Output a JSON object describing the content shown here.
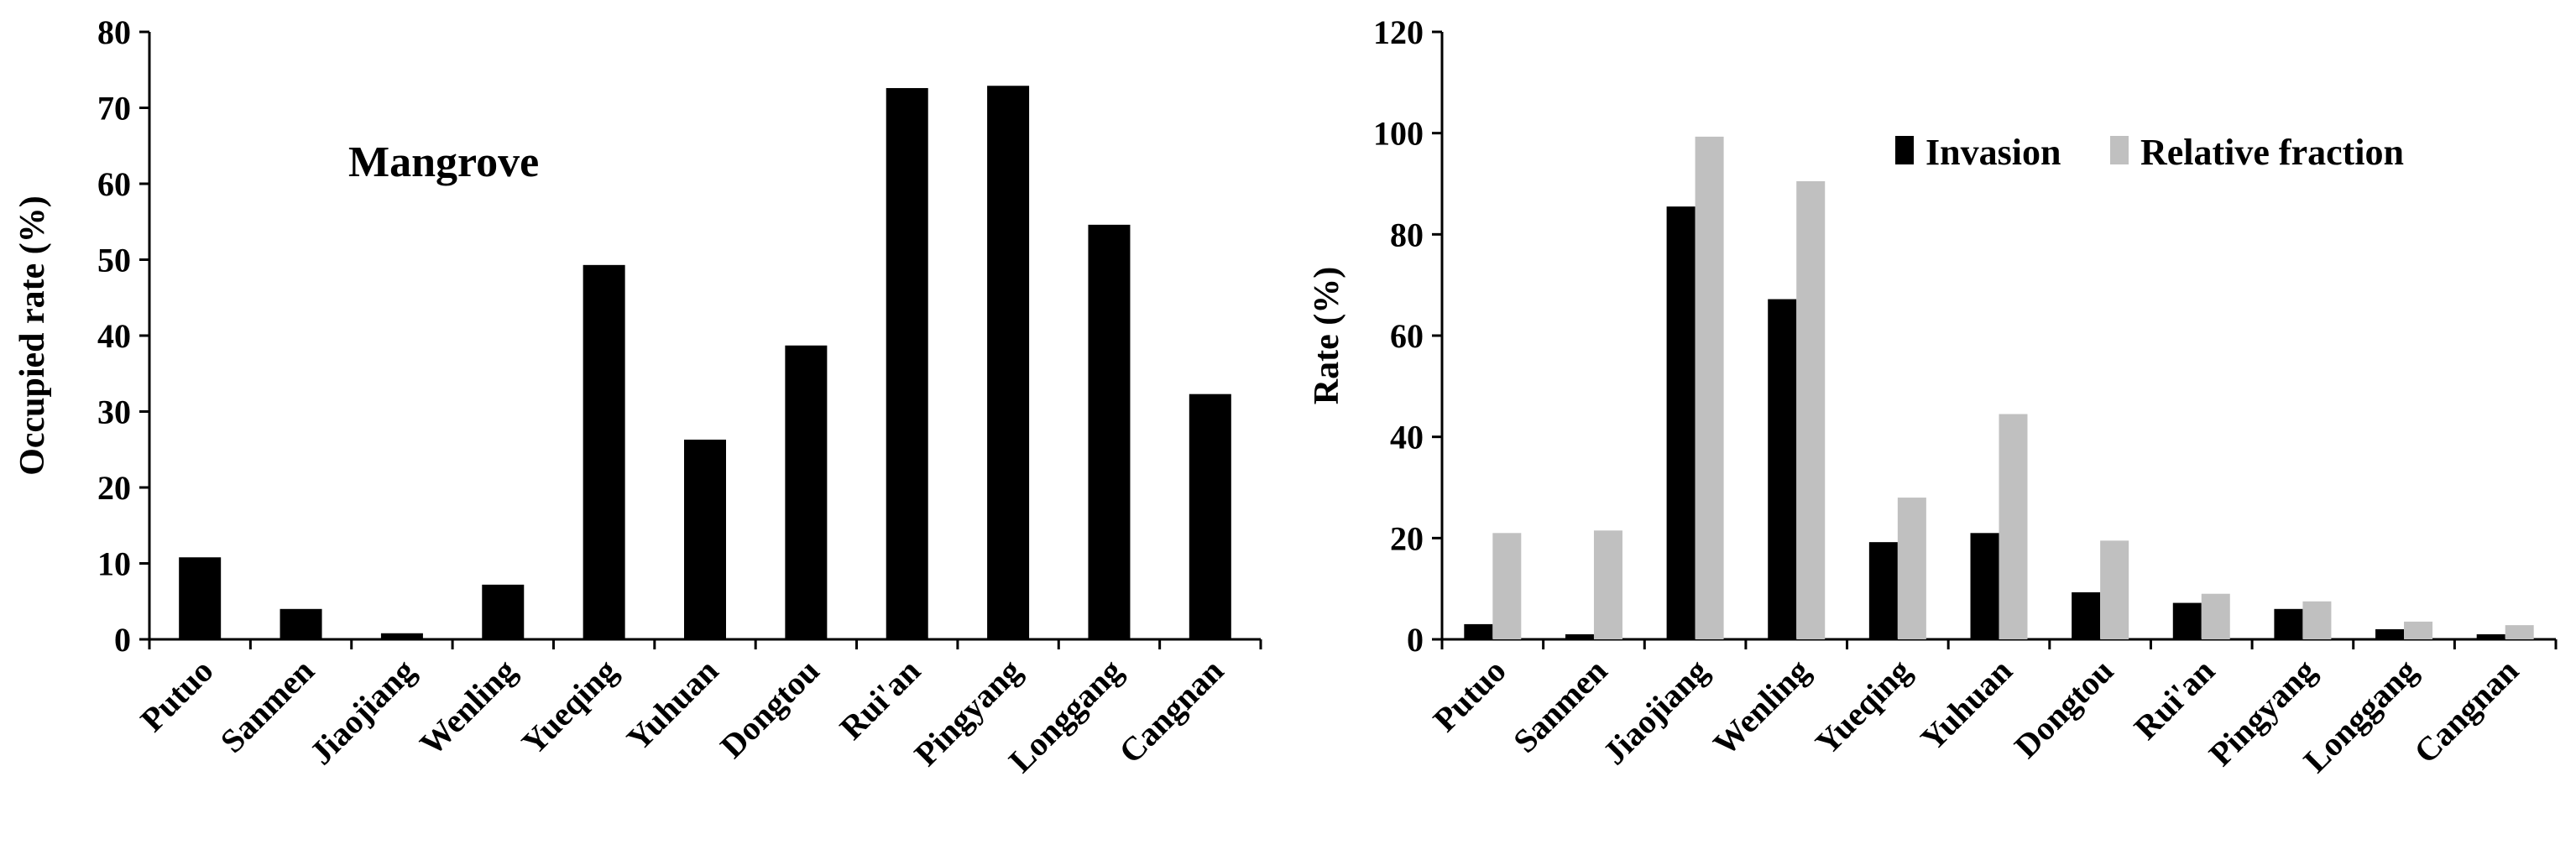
{
  "chart_data": [
    {
      "type": "bar",
      "categories": [
        "Putuo",
        "Sanmen",
        "Jiaojiang",
        "Wenling",
        "Yueqing",
        "Yuhuan",
        "Dongtou",
        "Rui'an",
        "Pingyang",
        "Longgang",
        "Cangnan"
      ],
      "series": [
        {
          "values": [
            10.8,
            4.0,
            0.8,
            7.2,
            49.3,
            26.3,
            38.7,
            72.6,
            72.9,
            54.6,
            32.3
          ]
        }
      ],
      "annotation": "Mangrove",
      "xlabel": "",
      "ylabel": "Occupied rate (%)",
      "ylim": [
        0,
        80
      ],
      "yticks": [
        0,
        10,
        20,
        30,
        40,
        50,
        60,
        70,
        80
      ],
      "grid": false,
      "colors": {
        "bars": "#000000"
      }
    },
    {
      "type": "bar",
      "categories": [
        "Putuo",
        "Sanmen",
        "Jiaojiang",
        "Wenling",
        "Yueqing",
        "Yuhuan",
        "Dongtou",
        "Rui'an",
        "Pingyang",
        "Longgang",
        "Cangnan"
      ],
      "series": [
        {
          "name": "Invasion",
          "color": "#000000",
          "values": [
            3.0,
            1.0,
            85.5,
            67.2,
            19.2,
            21.0,
            9.3,
            7.2,
            6.0,
            2.0,
            1.0
          ]
        },
        {
          "name": "Relative fraction",
          "color": "#c0c0c0",
          "values": [
            21.0,
            21.5,
            99.3,
            90.5,
            28.0,
            44.5,
            19.5,
            9.0,
            7.5,
            3.5,
            2.8
          ]
        }
      ],
      "xlabel": "",
      "ylabel": "Rate (%)",
      "ylim": [
        0,
        120
      ],
      "yticks": [
        0,
        20,
        40,
        60,
        80,
        100,
        120
      ],
      "grid": false,
      "legend_position": "top-right"
    }
  ]
}
